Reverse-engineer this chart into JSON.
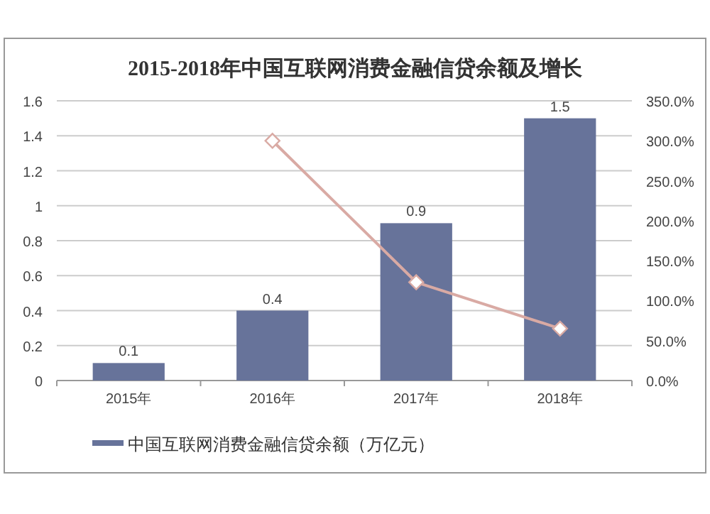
{
  "chart_data": {
    "type": "bar",
    "title": "2015-2018年中国互联网消费金融信贷余额及增长",
    "categories": [
      "2015年",
      "2016年",
      "2017年",
      "2018年"
    ],
    "series": [
      {
        "name": "中国互联网消费金融信贷余额（万亿元）",
        "color": "#67739a",
        "values": [
          0.1,
          0.4,
          0.9,
          1.5
        ],
        "data_labels": true
      },
      {
        "type": "line",
        "axis": "y2",
        "color": "#d9aaa4",
        "values": [
          null,
          300,
          123,
          65
        ],
        "marker": "diamond"
      }
    ],
    "ylim": [
      0,
      1.6
    ],
    "yticks": [
      0,
      0.2,
      0.4,
      0.6,
      0.8,
      1,
      1.2,
      1.4,
      1.6
    ],
    "y2lim": [
      0,
      350
    ],
    "y2ticks": [
      {
        "value": 0,
        "label": "0.0%"
      },
      {
        "value": 50,
        "label": "50.0%"
      },
      {
        "value": 100,
        "label": "100.0%"
      },
      {
        "value": 150,
        "label": "150.0%"
      },
      {
        "value": 200,
        "label": "200.0%"
      },
      {
        "value": 250,
        "label": "250.0%"
      },
      {
        "value": 300,
        "label": "300.0%"
      },
      {
        "value": 350,
        "label": "350.0%"
      }
    ],
    "grid": "y",
    "legend": "bottom"
  }
}
